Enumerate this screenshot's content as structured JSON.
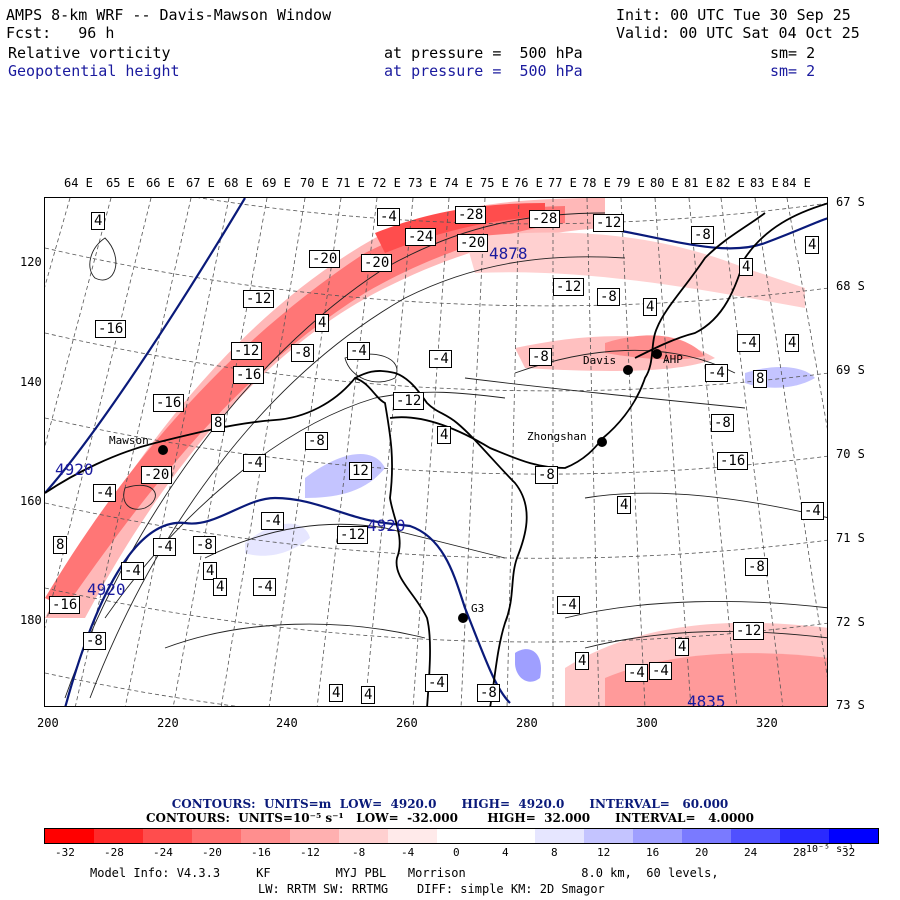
{
  "header": {
    "model_title": "AMPS 8-km WRF -- Davis-Mawson Window",
    "fcst_label": "Fcst:",
    "fcst_value": "96 h",
    "init": "Init: 00 UTC Tue 30 Sep 25",
    "valid": "Valid: 00 UTC Sat 04 Oct 25",
    "field1": {
      "name": "Relative vorticity",
      "level": "at pressure =  500 hPa",
      "sm": "sm= 2"
    },
    "field2": {
      "name": "Geopotential height",
      "level": "at pressure =  500 hPa",
      "sm": "sm= 2"
    }
  },
  "longitude_labels": [
    "64 E",
    "65 E",
    "66 E",
    "67 E",
    "68 E",
    "69 E",
    "70 E",
    "71 E",
    "72 E",
    "73 E",
    "74 E",
    "75 E",
    "76 E",
    "77 E",
    "78 E",
    "79 E",
    "80 E",
    "81 E",
    "82 E",
    "83 E",
    "84 E"
  ],
  "latitude_labels": [
    "67 S",
    "68 S",
    "69 S",
    "70 S",
    "71 S",
    "72 S",
    "73 S"
  ],
  "x_ticks": [
    "200",
    "220",
    "240",
    "260",
    "280",
    "300",
    "320"
  ],
  "y_ticks": [
    "120",
    "140",
    "160",
    "180"
  ],
  "stations": [
    {
      "name": "Mawson"
    },
    {
      "name": "Davis"
    },
    {
      "name": "Zhongshan"
    },
    {
      "name": "G3"
    },
    {
      "name": "AHP"
    }
  ],
  "height_labels": [
    "4878",
    "4920",
    "4920",
    "4920",
    "4835"
  ],
  "vorticity_labels": [
    "-4",
    "4",
    "-28",
    "-28",
    "-12",
    "-24",
    "-20",
    "-20",
    "-20",
    "-8",
    "4",
    "4",
    "-12",
    "-12",
    "4",
    "-8",
    "4",
    "-16",
    "-12",
    "-8",
    "-4",
    "-4",
    "-8",
    "-4",
    "4",
    "-16",
    "8",
    "-16",
    "-4",
    "-12",
    "8",
    "-8",
    "4",
    "-8",
    "-20",
    "-4",
    "12",
    "-4",
    "-16",
    "-8",
    "4",
    "-4",
    "8",
    "-12",
    "-4",
    "-4",
    "-8",
    "4",
    "-4",
    "-4",
    "4",
    "-8",
    "-4",
    "-16",
    "-12",
    "-8",
    "4",
    "4",
    "-4",
    "-4",
    "4",
    "4",
    "-4",
    "-8"
  ],
  "contour_info": {
    "line1": "CONTOURS:  UNITS=m  LOW=  4920.0      HIGH=  4920.0      INTERVAL=   60.000",
    "line2": "CONTOURS:  UNITS=10⁻⁵ s⁻¹   LOW=  -32.000       HIGH=  32.000      INTERVAL=   4.0000"
  },
  "colorbar": {
    "labels": [
      "-32",
      "-28",
      "-24",
      "-20",
      "-16",
      "-12",
      "-8",
      "-4",
      "0",
      "4",
      "8",
      "12",
      "16",
      "20",
      "24",
      "28",
      "32"
    ],
    "units": "10⁻⁵ s⁻¹",
    "colors": [
      "#ff0000",
      "#ff2a2a",
      "#ff4d4d",
      "#ff6e6e",
      "#ff8e8e",
      "#ffb0b0",
      "#ffd0d0",
      "#ffeaea",
      "#ffffff",
      "#ffffff",
      "#e6e6ff",
      "#c4c4ff",
      "#9f9fff",
      "#7a7aff",
      "#5050ff",
      "#2a2aff",
      "#0000ff"
    ]
  },
  "footer": {
    "model_info": "Model Info: V4.3.3     KF         MYJ PBL   Morrison                8.0 km,  60 levels,",
    "physics": "LW: RRTM SW: RRTMG    DIFF: simple KM: 2D Smagor"
  },
  "colors": {
    "map_line": "#000000",
    "height_contour": "#0a1a7a",
    "header_blue": "#1a1a9e"
  }
}
